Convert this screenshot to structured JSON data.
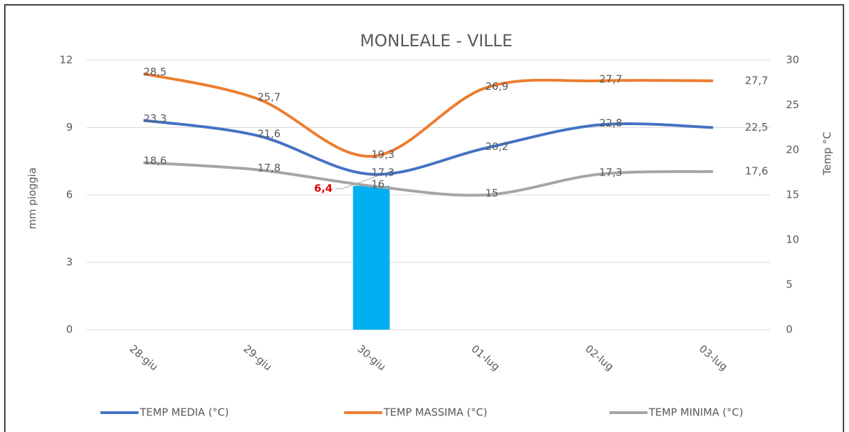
{
  "chart_data": {
    "type": "bar_line",
    "title": "MONLEALE - VILLE",
    "y_label": "mm pioggia",
    "y2_label": "Temp °C",
    "categories": [
      "28-giu",
      "29-giu",
      "30-giu",
      "01-lug",
      "02-lug",
      "03-lug"
    ],
    "values": [
      null,
      null,
      6.4,
      null,
      null,
      null
    ],
    "value_labels": [
      null,
      null,
      "6,4",
      null,
      null,
      null
    ],
    "color": "#00b0f0",
    "series": [
      {
        "name": "TEMP MEDIA (°C)",
        "color": "#4472c4",
        "axis": "y2",
        "values": [
          23.3,
          21.6,
          17.3,
          20.2,
          22.8,
          22.5
        ],
        "value_labels": [
          "23,3",
          "21,6",
          "17,3",
          "20,2",
          "22,8",
          "22,5"
        ]
      },
      {
        "name": "TEMP MASSIMA (°C)",
        "color": "#ed7d31",
        "axis": "y2",
        "values": [
          28.5,
          25.7,
          19.3,
          26.9,
          27.7,
          27.7
        ],
        "value_labels": [
          "28,5",
          "25,7",
          "19,3",
          "26,9",
          "27,7",
          "27,7"
        ]
      },
      {
        "name": "TEMP MINIMA (°C)",
        "color": "#a5a5a5",
        "axis": "y2",
        "values": [
          18.6,
          17.8,
          16,
          15,
          17.3,
          17.6
        ],
        "value_labels": [
          "18,6",
          "17,8",
          "16",
          "15",
          "17,3",
          "17,6"
        ]
      }
    ],
    "ylim": [
      0,
      12
    ],
    "yticks": [
      0,
      3,
      6,
      9,
      12
    ],
    "y2lim": [
      0,
      30
    ],
    "y2ticks": [
      0,
      5,
      10,
      15,
      20,
      25,
      30
    ],
    "grid": true,
    "legend": "bottom"
  }
}
